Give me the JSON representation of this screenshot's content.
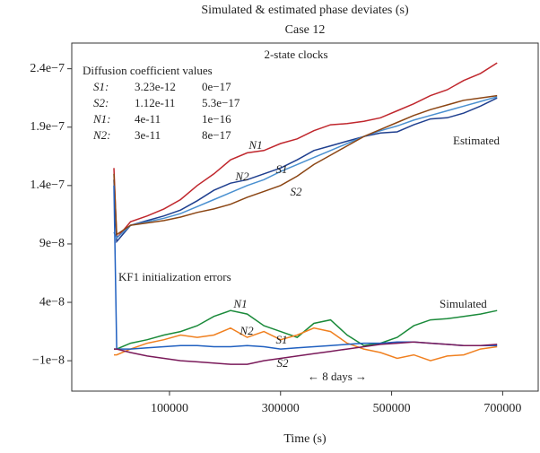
{
  "chart_data": {
    "type": "line",
    "title": "Simulated & estimated phase deviates (s)",
    "subtitle": "Case 12",
    "x_label": "Time (s)",
    "xlim": [
      -76000,
      764000
    ],
    "xticks": [
      100000,
      300000,
      500000,
      700000
    ],
    "ylim": [
      -3.6e-08,
      2.62e-07
    ],
    "yticks": [
      {
        "value": 2.4e-07,
        "label": "2.4e−7"
      },
      {
        "value": 1.9e-07,
        "label": "1.9e−7"
      },
      {
        "value": 1.4e-07,
        "label": "1.4e−7"
      },
      {
        "value": 9e-08,
        "label": "9e−8"
      },
      {
        "value": 4e-08,
        "label": "4e−8"
      },
      {
        "value": -1e-08,
        "label": "−1e−8"
      }
    ],
    "x": [
      0,
      5000,
      30000,
      60000,
      90000,
      120000,
      150000,
      180000,
      210000,
      240000,
      270000,
      300000,
      330000,
      360000,
      390000,
      420000,
      450000,
      480000,
      510000,
      540000,
      570000,
      600000,
      630000,
      660000,
      690000
    ],
    "series": [
      {
        "color": "#c0272d",
        "values": [
          1.55e-07,
          9.5e-08,
          1.09e-07,
          1.14e-07,
          1.2e-07,
          1.28e-07,
          1.4e-07,
          1.5e-07,
          1.62e-07,
          1.68e-07,
          1.7e-07,
          1.76e-07,
          1.8e-07,
          1.87e-07,
          1.92e-07,
          1.93e-07,
          1.95e-07,
          1.98e-07,
          2.04e-07,
          2.1e-07,
          2.17e-07,
          2.22e-07,
          2.3e-07,
          2.36e-07,
          2.45e-07
        ]
      },
      {
        "color": "#1f3f8f",
        "values": [
          1.45e-07,
          9.2e-08,
          1.06e-07,
          1.1e-07,
          1.14e-07,
          1.19e-07,
          1.27e-07,
          1.36e-07,
          1.42e-07,
          1.45e-07,
          1.5e-07,
          1.55e-07,
          1.62e-07,
          1.7e-07,
          1.74e-07,
          1.78e-07,
          1.82e-07,
          1.85e-07,
          1.86e-07,
          1.92e-07,
          1.97e-07,
          1.98e-07,
          2.02e-07,
          2.08e-07,
          2.15e-07
        ]
      },
      {
        "color": "#4a90d0",
        "values": [
          1e-07,
          9.5e-08,
          1.06e-07,
          1.09e-07,
          1.12e-07,
          1.16e-07,
          1.22e-07,
          1.28e-07,
          1.34e-07,
          1.4e-07,
          1.45e-07,
          1.52e-07,
          1.58e-07,
          1.64e-07,
          1.7e-07,
          1.76e-07,
          1.82e-07,
          1.87e-07,
          1.91e-07,
          1.96e-07,
          2e-07,
          2.04e-07,
          2.08e-07,
          2.12e-07,
          2.16e-07
        ]
      },
      {
        "color": "#8b4513",
        "values": [
          1.5e-07,
          9.8e-08,
          1.06e-07,
          1.08e-07,
          1.1e-07,
          1.13e-07,
          1.17e-07,
          1.2e-07,
          1.24e-07,
          1.3e-07,
          1.35e-07,
          1.4e-07,
          1.48e-07,
          1.58e-07,
          1.66e-07,
          1.74e-07,
          1.82e-07,
          1.88e-07,
          1.94e-07,
          2e-07,
          2.05e-07,
          2.09e-07,
          2.13e-07,
          2.15e-07,
          2.17e-07
        ]
      },
      {
        "color": "#1a8a3a",
        "values": [
          0,
          0,
          5e-09,
          8e-09,
          1.2e-08,
          1.5e-08,
          2e-08,
          2.8e-08,
          3.3e-08,
          3e-08,
          2e-08,
          1.5e-08,
          1e-08,
          2.2e-08,
          2.5e-08,
          1.2e-08,
          3e-09,
          5e-09,
          1e-08,
          2e-08,
          2.5e-08,
          2.6e-08,
          2.8e-08,
          3e-08,
          3.3e-08
        ]
      },
      {
        "color": "#f08020",
        "values": [
          -5e-09,
          -5e-09,
          0,
          5e-09,
          8e-09,
          1.2e-08,
          1e-08,
          1.2e-08,
          1.8e-08,
          1e-08,
          1.5e-08,
          8e-09,
          1.2e-08,
          1.8e-08,
          1.5e-08,
          5e-09,
          0,
          -3e-09,
          -8e-09,
          -5e-09,
          -1e-08,
          -6e-09,
          -5e-09,
          0,
          2e-09
        ]
      },
      {
        "color": "#2060c0",
        "values": [
          1.4e-07,
          0,
          0,
          1e-09,
          2e-09,
          3e-09,
          3e-09,
          2e-09,
          2e-09,
          3e-09,
          2e-09,
          0,
          1e-09,
          2e-09,
          3e-09,
          4e-09,
          5e-09,
          5e-09,
          6e-09,
          6e-09,
          5e-09,
          4e-09,
          3e-09,
          3e-09,
          3e-09
        ]
      },
      {
        "color": "#7a1a5a",
        "values": [
          0,
          0,
          -3e-09,
          -6e-09,
          -8e-09,
          -1e-08,
          -1.1e-08,
          -1.2e-08,
          -1.3e-08,
          -1.3e-08,
          -1e-08,
          -8e-09,
          -6e-09,
          -4e-09,
          -2e-09,
          0,
          2e-09,
          4e-09,
          5e-09,
          6e-09,
          5e-09,
          4e-09,
          3e-09,
          3e-09,
          4e-09
        ]
      }
    ],
    "annotations": [
      "2-state clocks",
      "N1",
      "N2",
      "S1",
      "S2",
      "Estimated",
      "KF1 initialization errors",
      "N1",
      "N2",
      "S1",
      "S2",
      "Simulated",
      "← 8 days →"
    ],
    "coefficients": {
      "title": "Diffusion coefficient values",
      "rows": [
        [
          "S1:",
          "3.23e-12",
          "0e−17"
        ],
        [
          "S2:",
          "1.12e-11",
          "5.3e−17"
        ],
        [
          "N1:",
          "4e-11",
          "1e−16"
        ],
        [
          "N2:",
          "3e-11",
          "8e−17"
        ]
      ]
    }
  }
}
